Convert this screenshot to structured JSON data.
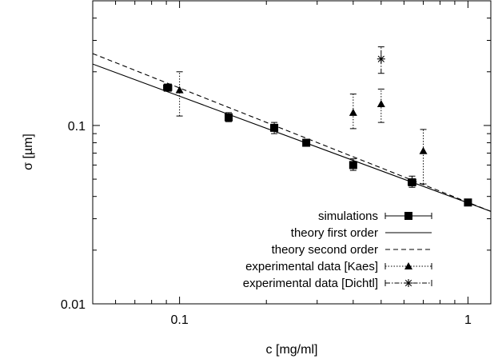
{
  "chart_data": {
    "type": "scatter",
    "title": "",
    "xlabel": "c [mg/ml]",
    "ylabel": "σ [µm]",
    "xscale": "log",
    "yscale": "log",
    "xlim": [
      0.05,
      1.2
    ],
    "ylim": [
      0.01,
      0.5
    ],
    "x_tick_labels": [
      {
        "value": 0.1,
        "label": "0.1"
      },
      {
        "value": 1,
        "label": "1"
      }
    ],
    "y_tick_labels": [
      {
        "value": 0.01,
        "label": "0.01"
      },
      {
        "value": 0.1,
        "label": "0.1"
      }
    ],
    "grid": false,
    "legend_position": "bottom-right",
    "series": [
      {
        "name": "simulations",
        "style": "filled squares with x and y error bars",
        "color": "#000000",
        "points": [
          {
            "x": 0.091,
            "y": 0.163,
            "yerr": [
              0.157,
              0.17
            ],
            "xerr": [
              0.088,
              0.094
            ]
          },
          {
            "x": 0.148,
            "y": 0.111,
            "yerr": [
              0.105,
              0.118
            ],
            "xerr": [
              0.144,
              0.152
            ]
          },
          {
            "x": 0.213,
            "y": 0.097,
            "yerr": [
              0.09,
              0.104
            ],
            "xerr": [
              0.207,
              0.219
            ]
          },
          {
            "x": 0.275,
            "y": 0.08,
            "yerr": [
              0.078,
              0.082
            ],
            "xerr": [
              0.268,
              0.282
            ]
          },
          {
            "x": 0.4,
            "y": 0.06,
            "yerr": [
              0.056,
              0.065
            ],
            "xerr": [
              0.39,
              0.41
            ]
          },
          {
            "x": 0.64,
            "y": 0.048,
            "yerr": [
              0.045,
              0.052
            ],
            "xerr": [
              0.62,
              0.66
            ]
          },
          {
            "x": 1.0,
            "y": 0.037,
            "yerr": [
              0.036,
              0.038
            ],
            "xerr": [
              0.975,
              1.025
            ]
          }
        ]
      },
      {
        "name": "theory first order",
        "style": "solid line",
        "color": "#000000",
        "points": [
          {
            "x": 0.05,
            "y": 0.221
          },
          {
            "x": 1.2,
            "y": 0.033
          }
        ]
      },
      {
        "name": "theory second order",
        "style": "dashed line",
        "color": "#000000",
        "points": [
          {
            "x": 0.05,
            "y": 0.253
          },
          {
            "x": 1.2,
            "y": 0.033
          }
        ]
      },
      {
        "name": "experimental data [Kaes]",
        "style": "filled triangles with dotted error bars",
        "color": "#000000",
        "points": [
          {
            "x": 0.1,
            "y": 0.158,
            "yerr": [
              0.113,
              0.2
            ]
          },
          {
            "x": 0.4,
            "y": 0.118,
            "yerr": [
              0.096,
              0.15
            ]
          },
          {
            "x": 0.5,
            "y": 0.132,
            "yerr": [
              0.104,
              0.16
            ]
          },
          {
            "x": 0.7,
            "y": 0.072,
            "yerr": [
              0.047,
              0.095
            ]
          }
        ]
      },
      {
        "name": "experimental data [Dichtl]",
        "style": "asterisk with dash-dot error bars",
        "color": "#000000",
        "points": [
          {
            "x": 0.5,
            "y": 0.236,
            "yerr": [
              0.196,
              0.276
            ]
          }
        ]
      }
    ]
  }
}
